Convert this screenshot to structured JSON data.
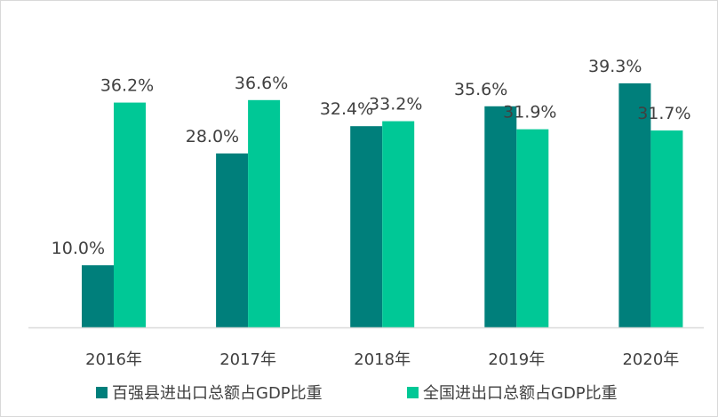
{
  "chart_data": {
    "type": "bar",
    "categories": [
      "2016年",
      "2017年",
      "2018年",
      "2019年",
      "2020年"
    ],
    "series": [
      {
        "name": "百强县进出口总额占GDP比重",
        "values": [
          10.0,
          28.0,
          32.4,
          35.6,
          39.3
        ],
        "labels": [
          "10.0%",
          "28.0%",
          "32.4%",
          "35.6%",
          "39.3%"
        ],
        "color": "#007f7b"
      },
      {
        "name": "全国进出口总额占GDP比重",
        "values": [
          36.2,
          36.6,
          33.2,
          31.9,
          31.7
        ],
        "labels": [
          "36.2%",
          "36.6%",
          "33.2%",
          "31.9%",
          "31.7%"
        ],
        "color": "#00c896"
      }
    ],
    "ylim": [
      0,
      40
    ],
    "grid": false,
    "legend_position": "bottom",
    "axis_color": "#d9d9d9"
  }
}
